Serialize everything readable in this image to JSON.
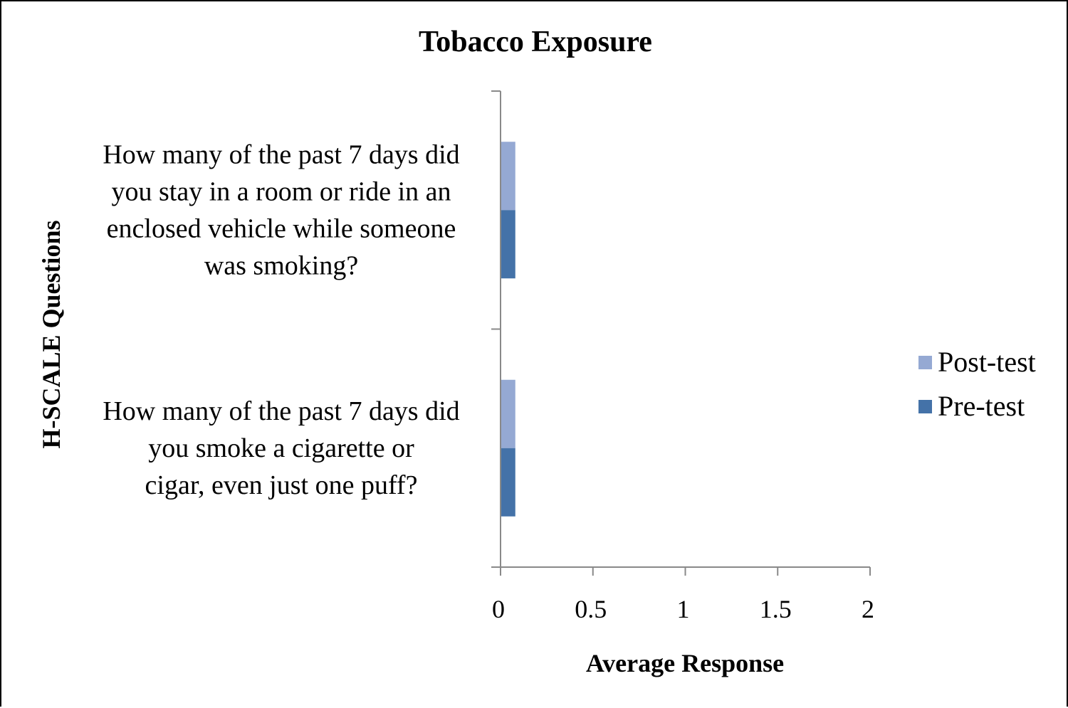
{
  "chart_data": {
    "type": "bar",
    "orientation": "horizontal",
    "title": "Tobacco Exposure",
    "xlabel": "Average Response",
    "ylabel": "H-SCALE Questions",
    "xlim": [
      0,
      2
    ],
    "xticks": [
      "0",
      "0.5",
      "1",
      "1.5",
      "2"
    ],
    "xtick_values": [
      0,
      0.5,
      1,
      1.5,
      2
    ],
    "categories": [
      [
        "How many of the past 7 days did",
        "you stay in a room or ride in an",
        "enclosed vehicle while someone",
        "was smoking?"
      ],
      [
        "How many of the past 7 days did",
        "you smoke a cigarette or",
        "cigar, even just one puff?"
      ]
    ],
    "series": [
      {
        "name": "Post-test",
        "color": "#95a9d3",
        "values": [
          0.08,
          0.08
        ]
      },
      {
        "name": "Pre-test",
        "color": "#4472a8",
        "values": [
          0.08,
          0.08
        ]
      }
    ],
    "legend_position": "right",
    "grid": false
  }
}
